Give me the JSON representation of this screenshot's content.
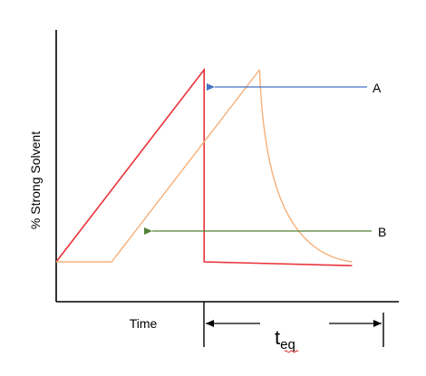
{
  "chart_data": {
    "type": "line",
    "title": "",
    "xlabel": "Time",
    "ylabel": "% Strong Solvent",
    "legend": "none",
    "grid": false,
    "series": [
      {
        "color": "#e8333a",
        "points": [
          [
            0,
            0
          ],
          [
            1.6,
            1
          ],
          [
            1.6,
            0
          ],
          [
            3.2,
            -0.02
          ]
        ]
      },
      {
        "color": "#f5b07a",
        "points": [
          [
            0,
            0
          ],
          [
            0.6,
            0
          ],
          [
            2.2,
            1
          ]
        ],
        "decay": {
          "from": [
            2.2,
            1
          ],
          "to": [
            3.2,
            0
          ],
          "shape": "exponential"
        }
      }
    ],
    "annotations": [
      {
        "label": "A",
        "arrow_color": "#4472c4",
        "points_to": "end of steep red gradient drop"
      },
      {
        "label": "B",
        "arrow_color": "#548235",
        "points_to": "orange delayed gradient"
      }
    ],
    "interval": {
      "label_main": "t",
      "label_sub": "eq",
      "spans": "from end of gradient to re-equilibration"
    }
  }
}
